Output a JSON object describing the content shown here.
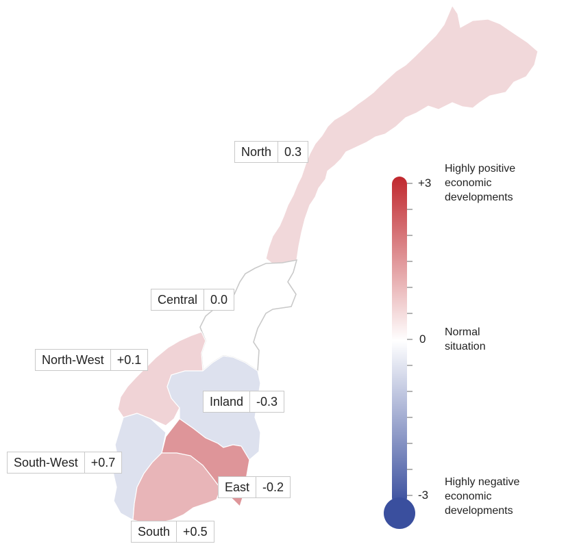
{
  "regions": [
    {
      "name": "North",
      "value": "0.3",
      "color": "#f1d8da"
    },
    {
      "name": "Central",
      "value": "0.0",
      "color": "#ffffff"
    },
    {
      "name": "North-West",
      "value": "+0.1",
      "color": "#f0d3d6"
    },
    {
      "name": "Inland",
      "value": "-0.3",
      "color": "#dde1ee"
    },
    {
      "name": "South-West",
      "value": "+0.7",
      "color": "#de9599"
    },
    {
      "name": "East",
      "value": "-0.2",
      "color": "#dde1ee"
    },
    {
      "name": "South",
      "value": "+0.5",
      "color": "#e8b5b8"
    }
  ],
  "legend": {
    "ticks": {
      "top": "+3",
      "mid": "0",
      "bottom": "-3"
    },
    "top_text": [
      "Highly positive",
      "economic",
      "developments"
    ],
    "mid_text": [
      "Normal",
      "situation"
    ],
    "bottom_text": [
      "Highly negative",
      "economic",
      "developments"
    ],
    "colors": {
      "positive": "#c0282e",
      "neutral": "#ffffff",
      "negative": "#3a4f9e"
    }
  }
}
